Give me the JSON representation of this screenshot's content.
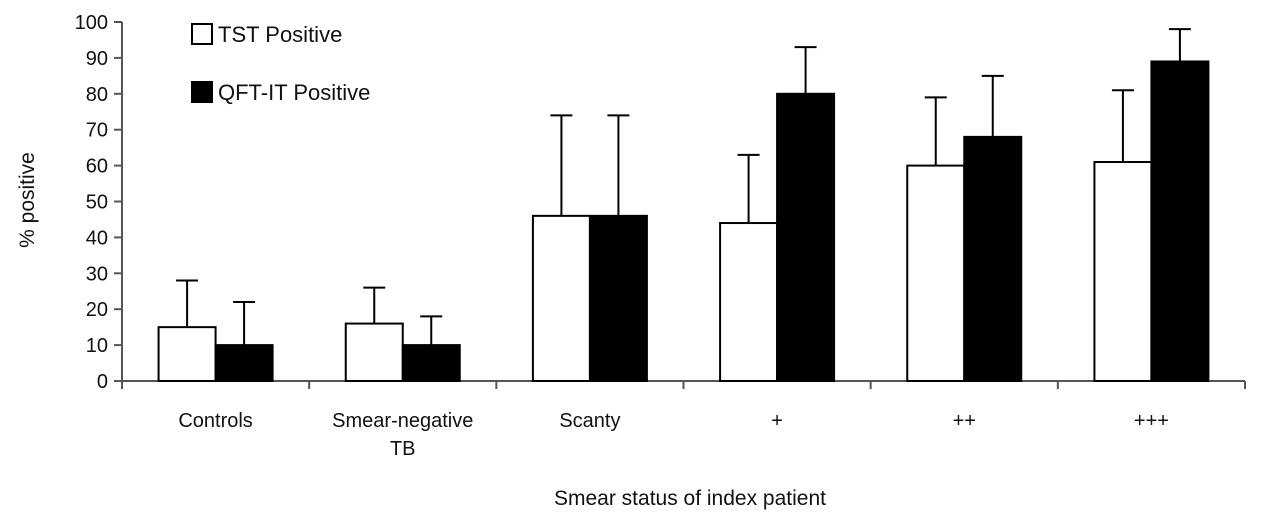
{
  "chart_data": {
    "type": "bar",
    "title": "",
    "xlabel": "Smear status of index patient",
    "ylabel": "% positive",
    "ylim": [
      0,
      100
    ],
    "yticks": [
      0,
      10,
      20,
      30,
      40,
      50,
      60,
      70,
      80,
      90,
      100
    ],
    "grid": false,
    "legend_position": "top-left",
    "categories": [
      [
        "Controls"
      ],
      [
        "Smear-negative",
        "TB"
      ],
      [
        "Scanty"
      ],
      [
        "+"
      ],
      [
        "++"
      ],
      [
        "+++"
      ]
    ],
    "series": [
      {
        "name": "TST Positive",
        "fill": "#ffffff",
        "values": [
          15,
          16,
          46,
          44,
          60,
          61
        ],
        "error_upper": [
          28,
          26,
          74,
          63,
          79,
          81
        ]
      },
      {
        "name": "QFT-IT Positive",
        "fill": "#000000",
        "values": [
          10,
          10,
          46,
          80,
          68,
          89
        ],
        "error_upper": [
          22,
          18,
          74,
          93,
          85,
          98
        ]
      }
    ]
  }
}
